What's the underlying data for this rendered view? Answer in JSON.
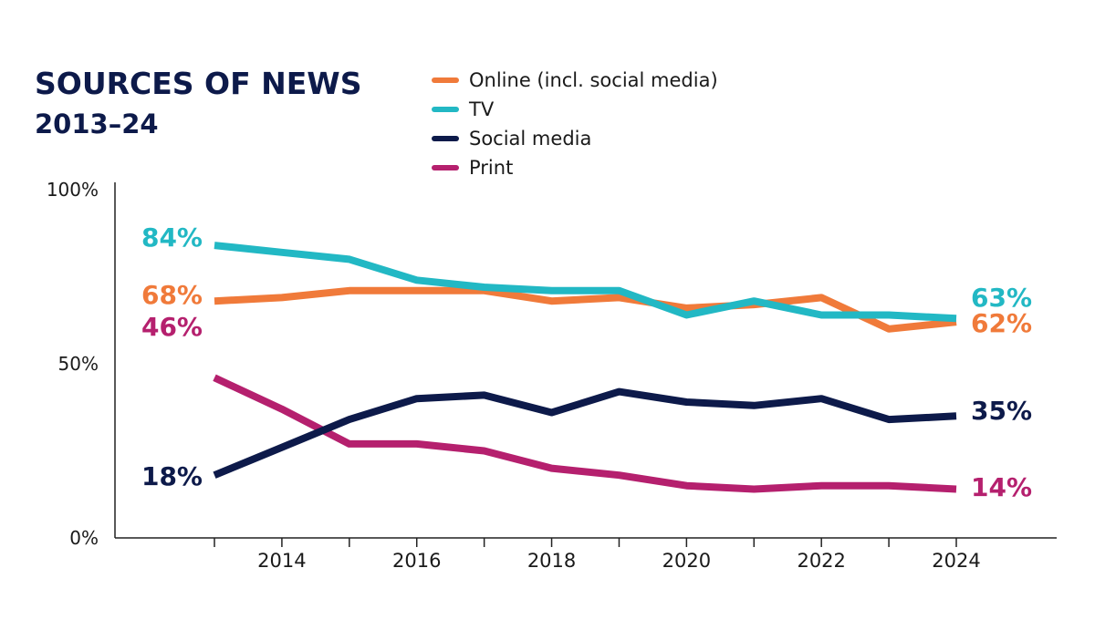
{
  "chart_data": {
    "type": "line",
    "title": "SOURCES OF NEWS",
    "subtitle": "2013–24",
    "x": [
      2013,
      2014,
      2015,
      2016,
      2017,
      2018,
      2019,
      2020,
      2021,
      2022,
      2023,
      2024
    ],
    "xticks": [
      2014,
      2016,
      2018,
      2020,
      2022,
      2024
    ],
    "xtick_labels": [
      "2014",
      "2016",
      "2018",
      "2020",
      "2022",
      "2024"
    ],
    "ylim": [
      0,
      100
    ],
    "yticks": [
      0,
      50,
      100
    ],
    "ytick_labels": [
      "0%",
      "50%",
      "100%"
    ],
    "xlabel": "",
    "ylabel": "",
    "grid": false,
    "legend_position": "top",
    "series": [
      {
        "name": "Online (incl. social media)",
        "color": "#f07a3a",
        "values": [
          68,
          69,
          71,
          71,
          71,
          68,
          69,
          66,
          67,
          69,
          60,
          62
        ],
        "start_label": "68%",
        "end_label": "62%"
      },
      {
        "name": "TV",
        "color": "#22b8c4",
        "values": [
          84,
          82,
          80,
          74,
          72,
          71,
          71,
          64,
          68,
          64,
          64,
          63
        ],
        "start_label": "84%",
        "end_label": "63%"
      },
      {
        "name": "Social media",
        "color": "#0d1a4a",
        "values": [
          18,
          26,
          34,
          40,
          41,
          36,
          42,
          39,
          38,
          40,
          34,
          35
        ],
        "start_label": "18%",
        "end_label": "35%"
      },
      {
        "name": "Print",
        "color": "#b5206e",
        "values": [
          46,
          37,
          27,
          27,
          25,
          20,
          18,
          15,
          14,
          15,
          15,
          14
        ],
        "start_label": "46%",
        "end_label": "14%"
      }
    ]
  }
}
